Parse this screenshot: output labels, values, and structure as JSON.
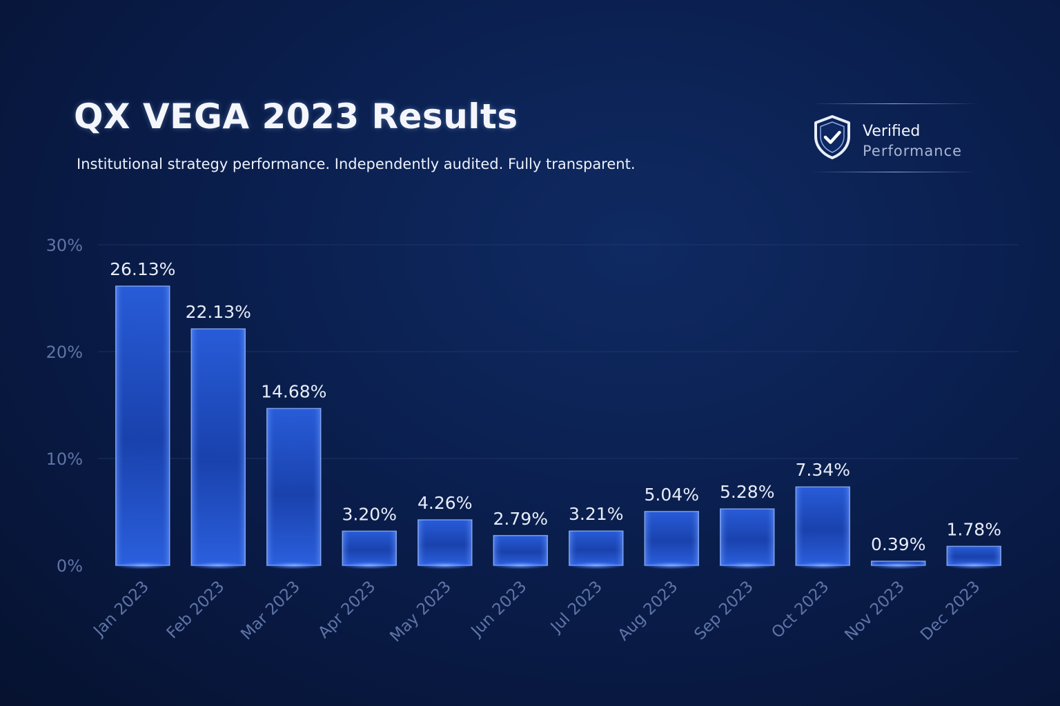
{
  "header": {
    "title": "QX VEGA 2023 Results",
    "subtitle": "Institutional strategy performance. Independently audited. Fully transparent."
  },
  "badge": {
    "icon": "shield-check-icon",
    "line1": "Verified",
    "line2": "Performance"
  },
  "colors": {
    "background": "#0a1d4a",
    "bar": "#1e4fc4",
    "bar_edge": "#8fb4ff",
    "axis_text": "#5f75a8",
    "label_text": "#e8edf8"
  },
  "chart_data": {
    "type": "bar",
    "categories": [
      "Jan 2023",
      "Feb 2023",
      "Mar 2023",
      "Apr 2023",
      "May 2023",
      "Jun 2023",
      "Jul 2023",
      "Aug 2023",
      "Sep 2023",
      "Oct 2023",
      "Nov 2023",
      "Dec 2023"
    ],
    "values": [
      26.13,
      22.13,
      14.68,
      3.2,
      4.26,
      2.79,
      3.21,
      5.04,
      5.28,
      7.34,
      0.39,
      1.78
    ],
    "value_labels": [
      "26.13%",
      "22.13%",
      "14.68%",
      "3.20%",
      "4.26%",
      "2.79%",
      "3.21%",
      "5.04%",
      "5.28%",
      "7.34%",
      "0.39%",
      "1.78%"
    ],
    "ylim": [
      0,
      30
    ],
    "yticks": [
      0,
      10,
      20,
      30
    ],
    "ytick_labels": [
      "0%",
      "10%",
      "20%",
      "30%"
    ],
    "grid": true,
    "legend": "none"
  }
}
